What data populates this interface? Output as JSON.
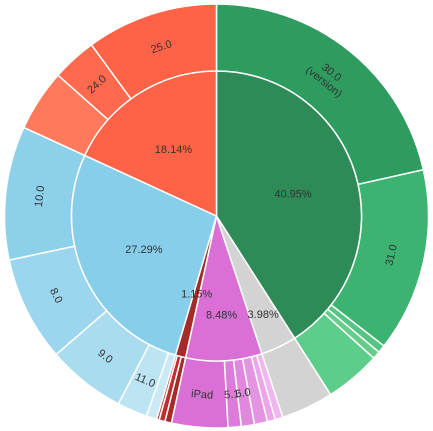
{
  "chart_data": {
    "type": "sunburst",
    "title": "",
    "start_angle_deg": 90,
    "direction": "clockwise",
    "inner": [
      {
        "id": "chrome",
        "label": "40.95%",
        "value": 40.95,
        "color": "#2e8b57"
      },
      {
        "id": "other",
        "label": "3.98%",
        "value": 3.98,
        "color": "#d3d3d3"
      },
      {
        "id": "safari",
        "label": "8.48%",
        "value": 8.48,
        "color": "#da70d6"
      },
      {
        "id": "opera",
        "label": "1.15%",
        "value": 1.15,
        "color": "#a52a2a"
      },
      {
        "id": "ie",
        "label": "27.29%",
        "value": 27.29,
        "color": "#87ceeb"
      },
      {
        "id": "firefox",
        "label": "18.14%",
        "value": 18.14,
        "color": "#ff6347"
      }
    ],
    "outer": [
      {
        "parent": "chrome",
        "label": "30.0\n(version)",
        "value": 21.5,
        "color": "#2e9b5f"
      },
      {
        "parent": "chrome",
        "label": "31.0",
        "value": 14.0,
        "color": "#3cb371"
      },
      {
        "parent": "chrome",
        "label": "",
        "value": 0.6,
        "color": "#56c483"
      },
      {
        "parent": "chrome",
        "label": "",
        "value": 0.6,
        "color": "#66cc8a"
      },
      {
        "parent": "chrome",
        "label": "",
        "value": 4.25,
        "color": "#5dcd8b"
      },
      {
        "parent": "other",
        "label": "",
        "value": 3.98,
        "color": "#d3d3d3"
      },
      {
        "parent": "safari",
        "label": "",
        "value": 0.6,
        "color": "#f0b6ee"
      },
      {
        "parent": "safari",
        "label": "",
        "value": 0.6,
        "color": "#eaa6e8"
      },
      {
        "parent": "safari",
        "label": "",
        "value": 1.0,
        "color": "#e495e2"
      },
      {
        "parent": "safari",
        "label": "6.0",
        "value": 1.0,
        "color": "#e088de"
      },
      {
        "parent": "safari",
        "label": "5.1",
        "value": 1.0,
        "color": "#dc7bda"
      },
      {
        "parent": "safari",
        "label": "iPad",
        "value": 4.28,
        "color": "#da70d6"
      },
      {
        "parent": "opera",
        "label": "",
        "value": 0.5,
        "color": "#a52a2a"
      },
      {
        "parent": "opera",
        "label": "",
        "value": 0.45,
        "color": "#b8312f"
      },
      {
        "parent": "opera",
        "label": "",
        "value": 0.2,
        "color": "#c44040"
      },
      {
        "parent": "ie",
        "label": "",
        "value": 0.8,
        "color": "#c9eaf6"
      },
      {
        "parent": "ie",
        "label": "11.0",
        "value": 2.3,
        "color": "#bde4f2"
      },
      {
        "parent": "ie",
        "label": "9.0",
        "value": 6.0,
        "color": "#aadcf0"
      },
      {
        "parent": "ie",
        "label": "8.0",
        "value": 8.0,
        "color": "#9cd6ee"
      },
      {
        "parent": "ie",
        "label": "10.0",
        "value": 10.19,
        "color": "#8dd0ea"
      },
      {
        "parent": "firefox",
        "label": "",
        "value": 4.7,
        "color": "#ff7a5c"
      },
      {
        "parent": "firefox",
        "label": "24.0",
        "value": 3.4,
        "color": "#ff6a4e"
      },
      {
        "parent": "firefox",
        "label": "25.0",
        "value": 10.04,
        "color": "#ff6347"
      }
    ]
  }
}
